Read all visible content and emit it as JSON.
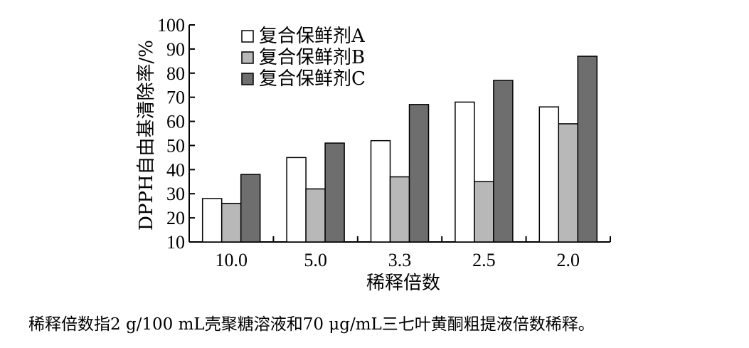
{
  "chart_data": {
    "type": "bar",
    "categories": [
      "10.0",
      "5.0",
      "3.3",
      "2.5",
      "2.0"
    ],
    "series": [
      {
        "name": "复合保鲜剂A",
        "values": [
          28,
          45,
          52,
          68,
          66
        ],
        "color": "#ffffff"
      },
      {
        "name": "复合保鲜剂B",
        "values": [
          26,
          32,
          37,
          35,
          59
        ],
        "color": "#b8b8b8"
      },
      {
        "name": "复合保鲜剂C",
        "values": [
          38,
          51,
          67,
          77,
          87
        ],
        "color": "#6e6e6e"
      }
    ],
    "xlabel": "稀释倍数",
    "ylabel": "DPPH自由基清除率/%",
    "ylim": [
      10,
      100
    ],
    "yticks": [
      10,
      20,
      30,
      40,
      50,
      60,
      70,
      80,
      90,
      100
    ],
    "grid": false,
    "legend_position": "top-left"
  },
  "caption": "稀释倍数指2 g/100 mL壳聚糖溶液和70 μg/mL三七叶黄酮粗提液倍数稀释。"
}
